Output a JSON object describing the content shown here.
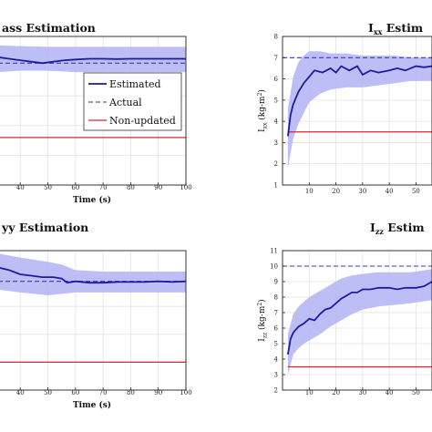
{
  "colors": {
    "estimated": "#1c1c9c",
    "band": "#b7b7f5",
    "actual": "#3b3ba8",
    "non_updated": "#d62828",
    "grid": "#e3e3e3",
    "axis": "#222222"
  },
  "chart_data": [
    {
      "type": "line",
      "title": "ass Estimation",
      "xlabel": "Time (s)",
      "ylabel": "",
      "x_ticks": [
        "40",
        "50",
        "60",
        "70",
        "80",
        "90",
        "100"
      ],
      "y_ticks": [],
      "xlim": [
        32,
        100
      ],
      "ylim": [
        0,
        1
      ],
      "legend": {
        "placement": "center-right",
        "entries": [
          "Estimated",
          "Actual",
          "Non-updated"
        ]
      },
      "series": [
        {
          "name": "Estimated",
          "x": [
            32,
            36,
            40,
            44,
            48,
            52,
            56,
            60,
            65,
            70,
            75,
            80,
            85,
            90,
            95,
            100
          ],
          "y": [
            0.86,
            0.85,
            0.84,
            0.83,
            0.82,
            0.83,
            0.84,
            0.845,
            0.85,
            0.85,
            0.848,
            0.85,
            0.85,
            0.85,
            0.85,
            0.85
          ]
        },
        {
          "name": "Band upper",
          "x": [
            32,
            40,
            50,
            60,
            70,
            80,
            90,
            100
          ],
          "y": [
            0.94,
            0.935,
            0.93,
            0.93,
            0.93,
            0.93,
            0.93,
            0.93
          ]
        },
        {
          "name": "Band lower",
          "x": [
            32,
            40,
            50,
            60,
            70,
            80,
            90,
            100
          ],
          "y": [
            0.76,
            0.77,
            0.77,
            0.76,
            0.76,
            0.76,
            0.76,
            0.76
          ]
        },
        {
          "name": "Actual",
          "x": [
            32,
            100
          ],
          "y": [
            0.82,
            0.82
          ]
        },
        {
          "name": "Non-updated",
          "x": [
            32,
            100
          ],
          "y": [
            0.32,
            0.32
          ]
        }
      ]
    },
    {
      "type": "line",
      "title": "I",
      "title_sub": "xx",
      "title_suffix": "Estim",
      "xlabel": "",
      "ylabel": "I",
      "ylabel_sub": "xx",
      "ylabel_suffix": "(kg-m",
      "ylabel_sup": "2",
      "ylabel_end": ")",
      "x_ticks": [
        "10",
        "20",
        "30",
        "40",
        "50"
      ],
      "y_ticks": [
        "1",
        "2",
        "3",
        "4",
        "5",
        "6",
        "7",
        "8"
      ],
      "xlim": [
        0,
        56
      ],
      "ylim": [
        1,
        8
      ],
      "series": [
        {
          "name": "Estimated",
          "x": [
            2,
            3,
            4,
            5,
            6,
            8,
            10,
            12,
            15,
            18,
            20,
            22,
            25,
            28,
            30,
            33,
            36,
            40,
            43,
            46,
            50,
            53,
            56
          ],
          "y": [
            3.3,
            4.3,
            4.8,
            5.1,
            5.4,
            5.8,
            6.1,
            6.4,
            6.3,
            6.5,
            6.3,
            6.6,
            6.4,
            6.6,
            6.2,
            6.4,
            6.3,
            6.4,
            6.5,
            6.4,
            6.6,
            6.55,
            6.6
          ]
        },
        {
          "name": "Band upper",
          "x": [
            2,
            4,
            6,
            8,
            10,
            14,
            18,
            24,
            30,
            36,
            42,
            48,
            56
          ],
          "y": [
            4.6,
            6.1,
            6.8,
            7.1,
            7.3,
            7.3,
            7.2,
            7.2,
            7.1,
            7.1,
            7.1,
            7.0,
            7.0
          ]
        },
        {
          "name": "Band lower",
          "x": [
            2,
            4,
            6,
            8,
            10,
            14,
            18,
            24,
            30,
            36,
            42,
            48,
            56
          ],
          "y": [
            1.8,
            3.2,
            3.9,
            4.4,
            4.9,
            5.3,
            5.5,
            5.6,
            5.6,
            5.7,
            5.8,
            5.9,
            5.9
          ]
        },
        {
          "name": "Actual",
          "x": [
            0,
            56
          ],
          "y": [
            7.0,
            7.0
          ]
        },
        {
          "name": "Non-updated",
          "x": [
            2,
            56
          ],
          "y": [
            3.5,
            3.5
          ]
        }
      ]
    },
    {
      "type": "line",
      "title": "yy",
      "title_suffix": "Estimation",
      "xlabel": "Time (s)",
      "ylabel": "",
      "x_ticks": [
        "40",
        "50",
        "60",
        "70",
        "80",
        "90",
        "100"
      ],
      "y_ticks": [],
      "xlim": [
        32,
        100
      ],
      "ylim": [
        0,
        1
      ],
      "series": [
        {
          "name": "Estimated",
          "x": [
            32,
            36,
            40,
            44,
            48,
            52,
            55,
            57,
            60,
            65,
            70,
            75,
            80,
            85,
            90,
            95,
            100
          ],
          "y": [
            0.88,
            0.86,
            0.83,
            0.82,
            0.81,
            0.81,
            0.8,
            0.77,
            0.78,
            0.77,
            0.77,
            0.775,
            0.775,
            0.775,
            0.78,
            0.775,
            0.78
          ]
        },
        {
          "name": "Band upper",
          "x": [
            32,
            40,
            50,
            55,
            60,
            70,
            80,
            90,
            100
          ],
          "y": [
            0.98,
            0.95,
            0.92,
            0.9,
            0.86,
            0.85,
            0.85,
            0.85,
            0.85
          ]
        },
        {
          "name": "Band lower",
          "x": [
            32,
            40,
            50,
            55,
            60,
            70,
            80,
            90,
            100
          ],
          "y": [
            0.72,
            0.7,
            0.68,
            0.69,
            0.7,
            0.7,
            0.7,
            0.7,
            0.7
          ]
        },
        {
          "name": "Actual",
          "x": [
            32,
            100
          ],
          "y": [
            0.78,
            0.78
          ]
        },
        {
          "name": "Non-updated",
          "x": [
            32,
            100
          ],
          "y": [
            0.2,
            0.2
          ]
        }
      ]
    },
    {
      "type": "line",
      "title": "I",
      "title_sub": "zz",
      "title_suffix": "Estim",
      "xlabel": "",
      "ylabel": "I",
      "ylabel_sub": "zz",
      "ylabel_suffix": "(kg-m",
      "ylabel_sup": "2",
      "ylabel_end": ")",
      "x_ticks": [
        "10",
        "20",
        "30",
        "40",
        "50"
      ],
      "y_ticks": [
        "2",
        "3",
        "4",
        "5",
        "6",
        "7",
        "8",
        "9",
        "10",
        "11"
      ],
      "xlim": [
        0,
        56
      ],
      "ylim": [
        2,
        11
      ],
      "series": [
        {
          "name": "Estimated",
          "x": [
            2,
            3,
            4,
            5,
            6,
            8,
            10,
            12,
            14,
            16,
            18,
            20,
            22,
            24,
            26,
            28,
            30,
            33,
            36,
            40,
            43,
            46,
            50,
            53,
            56
          ],
          "y": [
            4.3,
            5.3,
            5.7,
            5.9,
            6.1,
            6.3,
            6.6,
            6.5,
            6.9,
            7.2,
            7.3,
            7.6,
            7.9,
            8.1,
            8.3,
            8.3,
            8.5,
            8.5,
            8.6,
            8.6,
            8.5,
            8.6,
            8.6,
            8.7,
            9.0
          ]
        },
        {
          "name": "Band upper",
          "x": [
            2,
            4,
            6,
            8,
            10,
            14,
            18,
            22,
            26,
            30,
            36,
            42,
            48,
            56
          ],
          "y": [
            5.6,
            6.9,
            7.4,
            7.7,
            8.0,
            8.4,
            8.8,
            9.2,
            9.4,
            9.5,
            9.6,
            9.6,
            9.6,
            9.8
          ]
        },
        {
          "name": "Band lower",
          "x": [
            2,
            4,
            6,
            8,
            10,
            14,
            18,
            22,
            26,
            30,
            36,
            42,
            48,
            56
          ],
          "y": [
            3.0,
            4.3,
            4.7,
            5.0,
            5.2,
            5.6,
            6.1,
            6.5,
            6.9,
            7.2,
            7.4,
            7.5,
            7.6,
            7.8
          ]
        },
        {
          "name": "Actual",
          "x": [
            0,
            56
          ],
          "y": [
            10.0,
            10.0
          ]
        },
        {
          "name": "Non-updated",
          "x": [
            2,
            56
          ],
          "y": [
            3.5,
            3.5
          ]
        }
      ]
    }
  ]
}
